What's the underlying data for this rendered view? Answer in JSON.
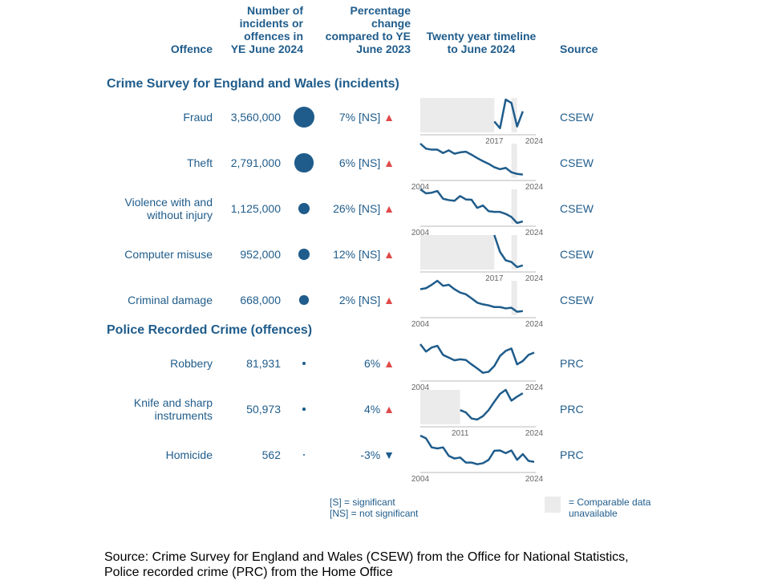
{
  "header": {
    "offence": "Offence",
    "number": "Number of\nincidents or\noffences in\nYE June 2024",
    "change": "Percentage\nchange\ncompared to YE\nJune 2023",
    "timeline": "Twenty year timeline\nto June 2024",
    "source": "Source"
  },
  "sections": {
    "csew": "Crime Survey for England and Wales (incidents)",
    "prc": "Police Recorded Crime (offences)"
  },
  "colors": {
    "line": "#1f5c8b",
    "up": "#e04a4a",
    "gap": "#ebebeb",
    "axis": "#d0d0d0"
  },
  "chart_data": {
    "type": "table",
    "rows": [
      {
        "offence": "Fraud",
        "count_label": "3,560,000",
        "count": 3560000,
        "change_label": "7% [NS]",
        "direction": "up",
        "source": "CSEW",
        "tick_start": "2017",
        "tick_end": "2024",
        "unavailable": [
          [
            2004,
            2017
          ],
          [
            2020,
            2021
          ]
        ],
        "trend": [
          [
            2017,
            30
          ],
          [
            2018,
            10
          ],
          [
            2019,
            95
          ],
          [
            2020,
            85
          ],
          [
            2021,
            15
          ],
          [
            2022,
            60
          ],
          [
            2024,
            55
          ]
        ]
      },
      {
        "offence": "Theft",
        "count_label": "2,791,000",
        "count": 2791000,
        "change_label": "6% [NS]",
        "direction": "up",
        "source": "CSEW",
        "tick_start": "2004",
        "tick_end": "2024",
        "unavailable": [
          [
            2020,
            2021
          ]
        ],
        "trend": [
          [
            2004,
            100
          ],
          [
            2005,
            85
          ],
          [
            2006,
            82
          ],
          [
            2007,
            82
          ],
          [
            2008,
            72
          ],
          [
            2009,
            80
          ],
          [
            2010,
            70
          ],
          [
            2011,
            74
          ],
          [
            2012,
            76
          ],
          [
            2013,
            67
          ],
          [
            2014,
            57
          ],
          [
            2015,
            48
          ],
          [
            2016,
            40
          ],
          [
            2017,
            30
          ],
          [
            2018,
            24
          ],
          [
            2019,
            28
          ],
          [
            2020,
            15
          ],
          [
            2021,
            10
          ],
          [
            2022,
            8
          ],
          [
            2024,
            15
          ]
        ]
      },
      {
        "offence": "Violence with and\nwithout injury",
        "count_label": "1,125,000",
        "count": 1125000,
        "change_label": "26% [NS]",
        "direction": "up",
        "source": "CSEW",
        "tick_start": "2004",
        "tick_end": "2024",
        "unavailable": [
          [
            2020,
            2021
          ]
        ],
        "trend": [
          [
            2004,
            100
          ],
          [
            2005,
            88
          ],
          [
            2006,
            90
          ],
          [
            2007,
            95
          ],
          [
            2008,
            72
          ],
          [
            2009,
            68
          ],
          [
            2010,
            66
          ],
          [
            2011,
            80
          ],
          [
            2012,
            70
          ],
          [
            2013,
            69
          ],
          [
            2014,
            45
          ],
          [
            2015,
            52
          ],
          [
            2016,
            35
          ],
          [
            2017,
            33
          ],
          [
            2018,
            33
          ],
          [
            2019,
            27
          ],
          [
            2020,
            18
          ],
          [
            2021,
            0
          ],
          [
            2022,
            5
          ],
          [
            2024,
            30
          ]
        ]
      },
      {
        "offence": "Computer misuse",
        "count_label": "952,000",
        "count": 952000,
        "change_label": "12% [NS]",
        "direction": "up",
        "source": "CSEW",
        "tick_start": "2017",
        "tick_end": "2024",
        "unavailable": [
          [
            2004,
            2017
          ],
          [
            2020,
            2021
          ]
        ],
        "trend": [
          [
            2017,
            100
          ],
          [
            2018,
            50
          ],
          [
            2019,
            25
          ],
          [
            2020,
            20
          ],
          [
            2021,
            5
          ],
          [
            2022,
            10
          ],
          [
            2024,
            30
          ]
        ]
      },
      {
        "offence": "Criminal damage",
        "count_label": "668,000",
        "count": 668000,
        "change_label": "2% [NS]",
        "direction": "up",
        "source": "CSEW",
        "tick_start": "2004",
        "tick_end": "2024",
        "unavailable": [
          [
            2020,
            2021
          ]
        ],
        "trend": [
          [
            2004,
            75
          ],
          [
            2005,
            78
          ],
          [
            2006,
            88
          ],
          [
            2007,
            100
          ],
          [
            2008,
            85
          ],
          [
            2009,
            88
          ],
          [
            2010,
            75
          ],
          [
            2011,
            65
          ],
          [
            2012,
            60
          ],
          [
            2013,
            48
          ],
          [
            2014,
            35
          ],
          [
            2015,
            30
          ],
          [
            2016,
            27
          ],
          [
            2017,
            22
          ],
          [
            2018,
            22
          ],
          [
            2019,
            18
          ],
          [
            2020,
            20
          ],
          [
            2021,
            8
          ],
          [
            2022,
            10
          ],
          [
            2024,
            10
          ]
        ]
      },
      {
        "offence": "Robbery",
        "count_label": "81,931",
        "count": 81931,
        "change_label": "6%",
        "direction": "up",
        "source": "PRC",
        "tick_start": "2004",
        "tick_end": "2024",
        "unavailable": [],
        "trend": [
          [
            2004,
            100
          ],
          [
            2005,
            78
          ],
          [
            2006,
            90
          ],
          [
            2007,
            95
          ],
          [
            2008,
            68
          ],
          [
            2009,
            60
          ],
          [
            2010,
            52
          ],
          [
            2011,
            55
          ],
          [
            2012,
            53
          ],
          [
            2013,
            40
          ],
          [
            2014,
            28
          ],
          [
            2015,
            15
          ],
          [
            2016,
            18
          ],
          [
            2017,
            35
          ],
          [
            2018,
            65
          ],
          [
            2019,
            80
          ],
          [
            2020,
            87
          ],
          [
            2021,
            40
          ],
          [
            2022,
            50
          ],
          [
            2023,
            68
          ],
          [
            2024,
            75
          ]
        ]
      },
      {
        "offence": "Knife and sharp\ninstruments",
        "count_label": "50,973",
        "count": 50973,
        "change_label": "4%",
        "direction": "up",
        "source": "PRC",
        "tick_start": "2011",
        "tick_end": "2024",
        "unavailable": [
          [
            2004,
            2011
          ]
        ],
        "trend": [
          [
            2011,
            40
          ],
          [
            2012,
            33
          ],
          [
            2013,
            15
          ],
          [
            2014,
            12
          ],
          [
            2015,
            22
          ],
          [
            2016,
            40
          ],
          [
            2017,
            65
          ],
          [
            2018,
            88
          ],
          [
            2019,
            100
          ],
          [
            2020,
            68
          ],
          [
            2021,
            80
          ],
          [
            2022,
            90
          ],
          [
            2024,
            95
          ]
        ]
      },
      {
        "offence": "Homicide",
        "count_label": "562",
        "count": 562,
        "change_label": "-3%",
        "direction": "down",
        "source": "PRC",
        "tick_start": "2004",
        "tick_end": "2024",
        "unavailable": [],
        "trend": [
          [
            2004,
            100
          ],
          [
            2005,
            92
          ],
          [
            2006,
            65
          ],
          [
            2007,
            62
          ],
          [
            2008,
            65
          ],
          [
            2009,
            40
          ],
          [
            2010,
            32
          ],
          [
            2011,
            35
          ],
          [
            2012,
            20
          ],
          [
            2013,
            20
          ],
          [
            2014,
            15
          ],
          [
            2015,
            18
          ],
          [
            2016,
            28
          ],
          [
            2017,
            55
          ],
          [
            2018,
            56
          ],
          [
            2019,
            48
          ],
          [
            2020,
            56
          ],
          [
            2021,
            28
          ],
          [
            2022,
            45
          ],
          [
            2023,
            25
          ],
          [
            2024,
            22
          ]
        ]
      }
    ]
  },
  "legend": {
    "significance": "[S] = significant\n[NS] = not significant",
    "unavailable": "= Comparable data\nunavailable"
  },
  "footer": "Source: Crime Survey for England and Wales (CSEW) from the Office for National Statistics,\nPolice recorded crime (PRC) from the Home Office"
}
